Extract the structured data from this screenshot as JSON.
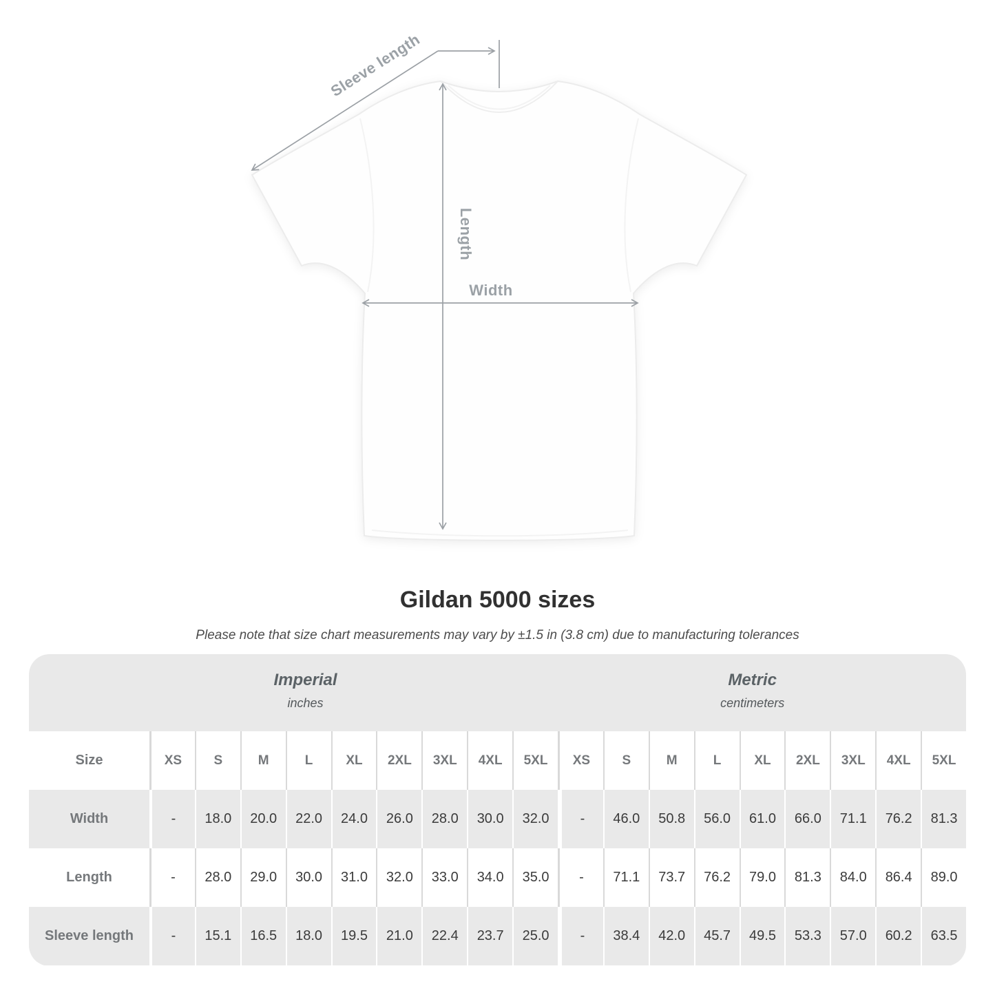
{
  "diagram": {
    "labels": {
      "sleeve": "Sleeve length",
      "length": "Length",
      "width": "Width"
    },
    "line_color": "#9ba0a5",
    "shirt_color": "#fefefe"
  },
  "title": "Gildan 5000 sizes",
  "note": "Please note that size chart measurements may vary by ±1.5 in (3.8 cm) due to manufacturing tolerances",
  "table": {
    "size_label": "Size",
    "sizes": [
      "XS",
      "S",
      "M",
      "L",
      "XL",
      "2XL",
      "3XL",
      "4XL",
      "5XL"
    ],
    "sections": [
      {
        "name": "Imperial",
        "unit": "inches"
      },
      {
        "name": "Metric",
        "unit": "centimeters"
      }
    ],
    "rows": [
      {
        "label": "Width",
        "imperial": [
          "-",
          "18.0",
          "20.0",
          "22.0",
          "24.0",
          "26.0",
          "28.0",
          "30.0",
          "32.0"
        ],
        "metric": [
          "-",
          "46.0",
          "50.8",
          "56.0",
          "61.0",
          "66.0",
          "71.1",
          "76.2",
          "81.3"
        ]
      },
      {
        "label": "Length",
        "imperial": [
          "-",
          "28.0",
          "29.0",
          "30.0",
          "31.0",
          "32.0",
          "33.0",
          "34.0",
          "35.0"
        ],
        "metric": [
          "-",
          "71.1",
          "73.7",
          "76.2",
          "79.0",
          "81.3",
          "84.0",
          "86.4",
          "89.0"
        ]
      },
      {
        "label": "Sleeve length",
        "imperial": [
          "-",
          "15.1",
          "16.5",
          "18.0",
          "19.5",
          "21.0",
          "22.4",
          "23.7",
          "25.0"
        ],
        "metric": [
          "-",
          "38.4",
          "42.0",
          "45.7",
          "49.5",
          "53.3",
          "57.0",
          "60.2",
          "63.5"
        ]
      }
    ]
  },
  "colors": {
    "table_band": "#e9e9e9",
    "header_text": "#75787b",
    "value_text": "#3b3b3b",
    "measure_gray": "#9ba1a6"
  }
}
